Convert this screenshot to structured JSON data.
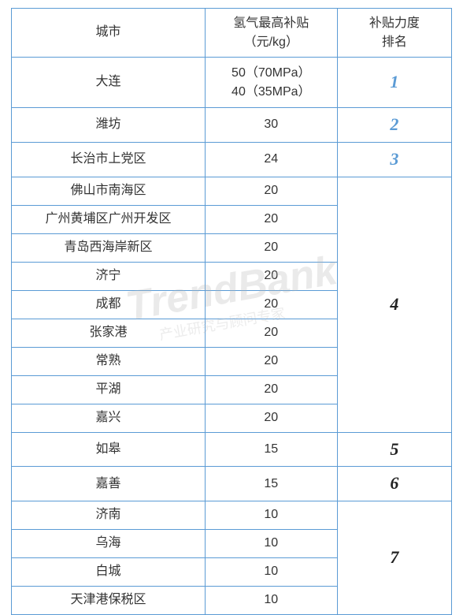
{
  "table": {
    "border_color": "#5b9bd5",
    "headers": {
      "city": "城市",
      "subsidy": "氢气最高补贴\n（元/kg）",
      "rank": "补贴力度\n排名"
    },
    "groups": [
      {
        "rank": "1",
        "rank_style": "blue",
        "rows": [
          {
            "city": "大连",
            "subsidy": "50（70MPa）\n40（35MPa）",
            "tall": true
          }
        ]
      },
      {
        "rank": "2",
        "rank_style": "blue",
        "rows": [
          {
            "city": "潍坊",
            "subsidy": "30"
          }
        ]
      },
      {
        "rank": "3",
        "rank_style": "blue",
        "rows": [
          {
            "city": "长治市上党区",
            "subsidy": "24"
          }
        ]
      },
      {
        "rank": "4",
        "rank_style": "black",
        "rows": [
          {
            "city": "佛山市南海区",
            "subsidy": "20"
          },
          {
            "city": "广州黄埔区广州开发区",
            "subsidy": "20"
          },
          {
            "city": "青岛西海岸新区",
            "subsidy": "20"
          },
          {
            "city": "济宁",
            "subsidy": "20"
          },
          {
            "city": "成都",
            "subsidy": "20"
          },
          {
            "city": "张家港",
            "subsidy": "20"
          },
          {
            "city": "常熟",
            "subsidy": "20"
          },
          {
            "city": "平湖",
            "subsidy": "20"
          },
          {
            "city": "嘉兴",
            "subsidy": "20"
          }
        ]
      },
      {
        "rank": "5",
        "rank_style": "black",
        "rows": [
          {
            "city": "如皋",
            "subsidy": "15"
          }
        ]
      },
      {
        "rank": "6",
        "rank_style": "black",
        "rows": [
          {
            "city": "嘉善",
            "subsidy": "15"
          }
        ]
      },
      {
        "rank": "7",
        "rank_style": "black",
        "rows": [
          {
            "city": "济南",
            "subsidy": "10"
          },
          {
            "city": "乌海",
            "subsidy": "10"
          },
          {
            "city": "白城",
            "subsidy": "10"
          },
          {
            "city": "天津港保税区",
            "subsidy": "10"
          }
        ]
      }
    ]
  },
  "watermark": {
    "main": "TrendBank",
    "sub": "产业研究与顾问专家"
  }
}
